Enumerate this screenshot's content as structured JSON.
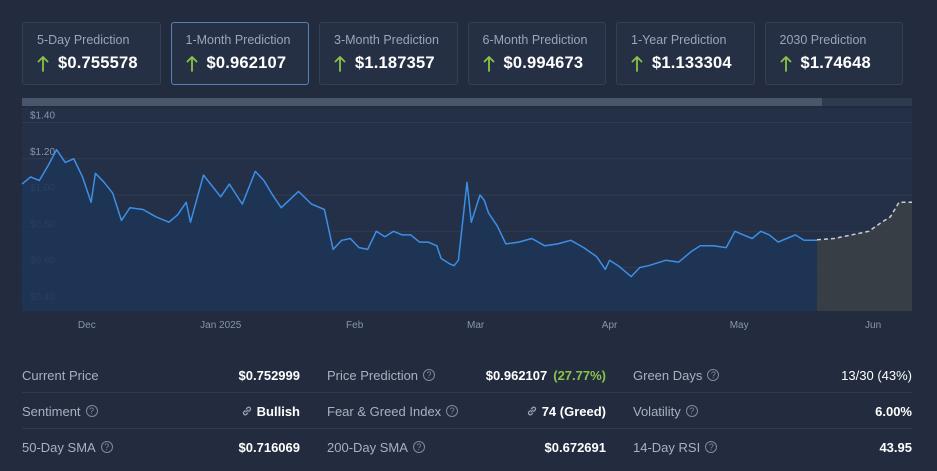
{
  "cards": [
    {
      "label": "5-Day Prediction",
      "value": "$0.755578",
      "active": false
    },
    {
      "label": "1-Month Prediction",
      "value": "$0.962107",
      "active": true
    },
    {
      "label": "3-Month Prediction",
      "value": "$1.187357",
      "active": false
    },
    {
      "label": "6-Month Prediction",
      "value": "$0.994673",
      "active": false
    },
    {
      "label": "1-Year Prediction",
      "value": "$1.133304",
      "active": false
    },
    {
      "label": "2030 Prediction",
      "value": "$1.74648",
      "active": false
    }
  ],
  "colors": {
    "up_arrow": "#8bc34a",
    "line": "#3d8fe6",
    "area": "#1d3555",
    "prediction_line": "#c9ced6",
    "prediction_area": "#3a3f47",
    "bullish": "#8bc34a",
    "green_days": "#ef4f5f"
  },
  "chart_data": {
    "type": "line",
    "y_tick_labels": [
      "$1.40",
      "$1.20",
      "$1.00",
      "$0.80",
      "$0.60",
      "$0.40"
    ],
    "y_ticks": [
      1.4,
      1.2,
      1.0,
      0.8,
      0.6,
      0.4
    ],
    "ylim": [
      0.36,
      1.48
    ],
    "x_tick_labels": [
      "Dec",
      "Jan 2025",
      "Feb",
      "Mar",
      "Apr",
      "May",
      "Jun"
    ],
    "x_ticks": [
      "2024-12-01",
      "2025-01-01",
      "2025-02-01",
      "2025-03-01",
      "2025-04-01",
      "2025-05-01",
      "2025-06-01"
    ],
    "xlim": [
      "2024-11-16",
      "2025-06-10"
    ],
    "grid": true,
    "series": [
      {
        "style": "solid",
        "points": [
          [
            "2024-11-16",
            1.06
          ],
          [
            "2024-11-18",
            1.1
          ],
          [
            "2024-11-20",
            1.08
          ],
          [
            "2024-11-22",
            1.16
          ],
          [
            "2024-11-24",
            1.25
          ],
          [
            "2024-11-26",
            1.18
          ],
          [
            "2024-11-28",
            1.2
          ],
          [
            "2024-11-30",
            1.1
          ],
          [
            "2024-12-02",
            0.96
          ],
          [
            "2024-12-03",
            1.12
          ],
          [
            "2024-12-05",
            1.07
          ],
          [
            "2024-12-07",
            1.01
          ],
          [
            "2024-12-09",
            0.86
          ],
          [
            "2024-12-11",
            0.93
          ],
          [
            "2024-12-14",
            0.92
          ],
          [
            "2024-12-17",
            0.88
          ],
          [
            "2024-12-20",
            0.85
          ],
          [
            "2024-12-22",
            0.89
          ],
          [
            "2024-12-24",
            0.96
          ],
          [
            "2024-12-25",
            0.85
          ],
          [
            "2024-12-28",
            1.11
          ],
          [
            "2025-01-01",
            0.99
          ],
          [
            "2025-01-03",
            1.06
          ],
          [
            "2025-01-06",
            0.95
          ],
          [
            "2025-01-09",
            1.13
          ],
          [
            "2025-01-11",
            1.08
          ],
          [
            "2025-01-13",
            1.0
          ],
          [
            "2025-01-15",
            0.93
          ],
          [
            "2025-01-19",
            1.02
          ],
          [
            "2025-01-22",
            0.95
          ],
          [
            "2025-01-25",
            0.92
          ],
          [
            "2025-01-27",
            0.7
          ],
          [
            "2025-01-29",
            0.75
          ],
          [
            "2025-01-31",
            0.76
          ],
          [
            "2025-02-02",
            0.71
          ],
          [
            "2025-02-04",
            0.7
          ],
          [
            "2025-02-06",
            0.8
          ],
          [
            "2025-02-08",
            0.77
          ],
          [
            "2025-02-10",
            0.8
          ],
          [
            "2025-02-12",
            0.78
          ],
          [
            "2025-02-14",
            0.78
          ],
          [
            "2025-02-16",
            0.74
          ],
          [
            "2025-02-18",
            0.74
          ],
          [
            "2025-02-20",
            0.72
          ],
          [
            "2025-02-21",
            0.65
          ],
          [
            "2025-02-23",
            0.62
          ],
          [
            "2025-02-24",
            0.61
          ],
          [
            "2025-02-25",
            0.64
          ],
          [
            "2025-02-27",
            1.07
          ],
          [
            "2025-02-28",
            0.85
          ],
          [
            "2025-03-02",
            1.0
          ],
          [
            "2025-03-03",
            0.97
          ],
          [
            "2025-03-04",
            0.9
          ],
          [
            "2025-03-06",
            0.83
          ],
          [
            "2025-03-08",
            0.73
          ],
          [
            "2025-03-11",
            0.74
          ],
          [
            "2025-03-14",
            0.76
          ],
          [
            "2025-03-17",
            0.72
          ],
          [
            "2025-03-20",
            0.73
          ],
          [
            "2025-03-23",
            0.75
          ],
          [
            "2025-03-26",
            0.71
          ],
          [
            "2025-03-29",
            0.66
          ],
          [
            "2025-03-31",
            0.59
          ],
          [
            "2025-04-01",
            0.64
          ],
          [
            "2025-04-03",
            0.61
          ],
          [
            "2025-04-06",
            0.55
          ],
          [
            "2025-04-08",
            0.6
          ],
          [
            "2025-04-10",
            0.61
          ],
          [
            "2025-04-14",
            0.64
          ],
          [
            "2025-04-17",
            0.63
          ],
          [
            "2025-04-20",
            0.69
          ],
          [
            "2025-04-22",
            0.72
          ],
          [
            "2025-04-25",
            0.72
          ],
          [
            "2025-04-28",
            0.71
          ],
          [
            "2025-04-30",
            0.8
          ],
          [
            "2025-05-02",
            0.78
          ],
          [
            "2025-05-04",
            0.76
          ],
          [
            "2025-05-06",
            0.8
          ],
          [
            "2025-05-08",
            0.78
          ],
          [
            "2025-05-10",
            0.74
          ],
          [
            "2025-05-12",
            0.76
          ],
          [
            "2025-05-14",
            0.78
          ],
          [
            "2025-05-16",
            0.75
          ],
          [
            "2025-05-19",
            0.75
          ]
        ]
      },
      {
        "style": "dashed",
        "points": [
          [
            "2025-05-19",
            0.753
          ],
          [
            "2025-05-23",
            0.76
          ],
          [
            "2025-05-27",
            0.78
          ],
          [
            "2025-05-31",
            0.8
          ],
          [
            "2025-06-03",
            0.85
          ],
          [
            "2025-06-05",
            0.88
          ],
          [
            "2025-06-07",
            0.96
          ],
          [
            "2025-06-10",
            0.96
          ]
        ]
      }
    ]
  },
  "stats": {
    "current_price": {
      "label": "Current Price",
      "value": "$0.752999"
    },
    "price_prediction": {
      "label": "Price Prediction",
      "value": "$0.962107",
      "change": "(27.77%)"
    },
    "green_days": {
      "label": "Green Days",
      "value": "13/30 (43%)"
    },
    "sentiment": {
      "label": "Sentiment",
      "value": "Bullish"
    },
    "fear_greed": {
      "label": "Fear & Greed Index",
      "value": "74 (Greed)"
    },
    "volatility": {
      "label": "Volatility",
      "value": "6.00%"
    },
    "sma50": {
      "label": "50-Day SMA",
      "value": "$0.716069"
    },
    "sma200": {
      "label": "200-Day SMA",
      "value": "$0.672691"
    },
    "rsi14": {
      "label": "14-Day RSI",
      "value": "43.95"
    }
  },
  "icons": {
    "arrow": "up-arrow-icon",
    "help": "help-circle-icon",
    "link": "link-icon"
  },
  "help_glyph": "?"
}
